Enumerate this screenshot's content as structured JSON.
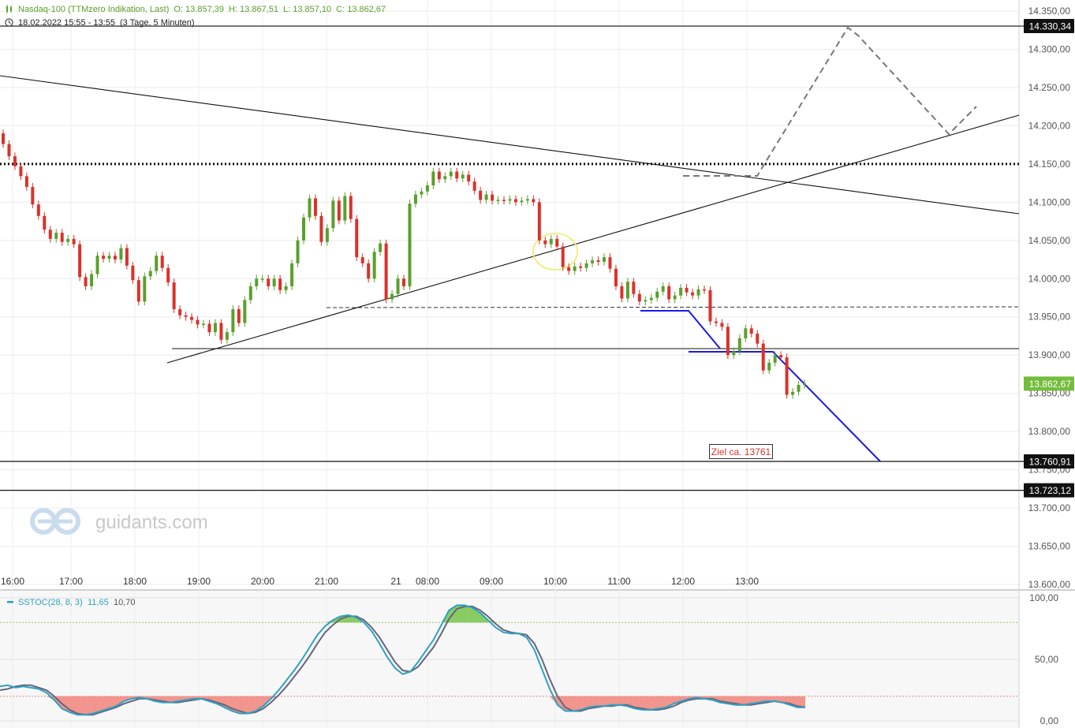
{
  "header": {
    "instrument": "Nasdaq-100 (TTMzero Indikation, Last)",
    "open": "O: 13.857,39",
    "high": "H: 13.867,51",
    "low": "L: 13.857,10",
    "close": "C: 13.862,67",
    "period": "18.02.2022 15:55 - 13:55",
    "interval": "(3 Tage, 5 Minuten)",
    "chart_icon": "candlestick-icon",
    "clock_icon": "clock-icon"
  },
  "watermark": {
    "text": "guidants.com",
    "icon": "guidants-logo-icon"
  },
  "annotation": {
    "target_label": "Ziel ca. 13761"
  },
  "indicator": {
    "label": "SSTOC(28, 8, 3)",
    "value1": "11,65",
    "value2": "10,70"
  },
  "colors": {
    "up": "#5aa02c",
    "down": "#d9322b",
    "indicator_k": "#2ea1c4",
    "indicator_d": "#66667a",
    "overbought_fill": "#7cc653",
    "oversold_fill": "#f08a82",
    "blue_line": "#1a1ae6",
    "badge_last": "#74bd3c"
  },
  "chart_data": [
    {
      "type": "candlestick",
      "title": "Nasdaq-100 (TTMzero Indikation, Last)",
      "x_tick_labels": [
        "16:00",
        "17:00",
        "18:00",
        "19:00",
        "20:00",
        "21:00",
        "21",
        "08:00",
        "09:00",
        "10:00",
        "11:00",
        "12:00",
        "13:00"
      ],
      "y_tick_labels": [
        "14.350,00",
        "14.300,00",
        "14.250,00",
        "14.200,00",
        "14.150,00",
        "14.100,00",
        "14.050,00",
        "14.000,00",
        "13.950,00",
        "13.900,00",
        "13.850,00",
        "13.800,00",
        "13.750,00",
        "13.700,00",
        "13.650,00",
        "13.600,00"
      ],
      "ylim": [
        13595,
        14355
      ],
      "grid": true,
      "candle_close": [
        14176,
        14160,
        14147,
        14134,
        14120,
        14097,
        14082,
        14064,
        14052,
        14060,
        14048,
        14052,
        14045,
        14002,
        13990,
        14006,
        14030,
        14026,
        14030,
        14025,
        14040,
        14017,
        13998,
        13970,
        14003,
        14010,
        14030,
        14014,
        13995,
        13960,
        13952,
        13950,
        13946,
        13940,
        13941,
        13930,
        13942,
        13920,
        13930,
        13960,
        13942,
        13972,
        13990,
        14000,
        14000,
        13990,
        14000,
        13985,
        13990,
        14020,
        14050,
        14080,
        14105,
        14082,
        14048,
        14066,
        14102,
        14076,
        14108,
        14078,
        14028,
        14020,
        14000,
        14035,
        14046,
        13973,
        13980,
        14000,
        13990,
        14098,
        14110,
        14114,
        14122,
        14140,
        14130,
        14134,
        14140,
        14131,
        14136,
        14127,
        14115,
        14103,
        14110,
        14102,
        14103,
        14102,
        14104,
        14100,
        14102,
        14104,
        14100,
        14050,
        14045,
        14052,
        14042,
        14015,
        14010,
        14016,
        14014,
        14020,
        14024,
        14022,
        14028,
        14013,
        13990,
        13974,
        13996,
        13980,
        13970,
        13972,
        13975,
        13983,
        13990,
        13973,
        13978,
        13988,
        13982,
        13978,
        13986,
        13985,
        13944,
        13942,
        13937,
        13900,
        13905,
        13922,
        13935,
        13928,
        13915,
        13880,
        13890,
        13900,
        13897,
        13848,
        13852,
        13861,
        13863
      ],
      "label_value": 13862.67,
      "horizontal_levels": [
        14330.34,
        13760.91,
        13723.12
      ],
      "dotted_level": 14150,
      "dashed_level": 13962,
      "level_labels": [
        "14.330,34",
        "13.760,91",
        "13.723,12"
      ],
      "last_price_label": "13.862,67",
      "annotation": "Ziel ca. 13761"
    },
    {
      "type": "line",
      "title": "SSTOC(28, 8, 3)",
      "y_tick_labels": [
        "100,00",
        "50,00",
        "0,00"
      ],
      "ylim": [
        0,
        100
      ],
      "levels": [
        80,
        20
      ],
      "series": [
        {
          "name": "",
          "values": [
            28,
            29,
            27,
            28,
            27,
            26,
            23,
            17,
            10,
            7,
            5,
            5,
            6,
            8,
            10,
            12,
            16,
            18,
            19,
            18,
            16,
            15,
            15,
            16,
            17,
            18,
            18,
            16,
            14,
            11,
            8,
            6,
            6,
            8,
            12,
            18,
            25,
            33,
            41,
            50,
            60,
            70,
            77,
            82,
            85,
            86,
            84,
            80,
            73,
            63,
            52,
            43,
            38,
            40,
            48,
            57,
            66,
            78,
            90,
            94,
            94,
            92,
            88,
            82,
            76,
            72,
            71,
            71,
            68,
            58,
            42,
            26,
            13,
            8,
            8,
            9,
            11,
            12,
            12,
            13,
            13,
            12,
            10,
            9,
            9,
            10,
            11,
            14,
            16,
            18,
            19,
            18,
            17,
            15,
            14,
            13,
            13,
            14,
            15,
            16,
            16,
            15,
            13,
            11,
            11
          ]
        },
        {
          "name": "",
          "values": [
            25,
            26,
            28,
            29,
            29,
            27,
            25,
            20,
            14,
            9,
            6,
            5,
            5,
            7,
            9,
            11,
            14,
            16,
            18,
            18,
            17,
            16,
            15,
            15,
            16,
            17,
            18,
            17,
            15,
            13,
            10,
            8,
            6,
            7,
            10,
            15,
            21,
            28,
            36,
            44,
            53,
            63,
            72,
            78,
            83,
            85,
            85,
            82,
            76,
            68,
            58,
            48,
            41,
            40,
            44,
            52,
            60,
            71,
            83,
            91,
            93,
            93,
            90,
            85,
            79,
            74,
            72,
            71,
            70,
            63,
            50,
            34,
            20,
            11,
            8,
            8,
            10,
            11,
            12,
            12,
            13,
            13,
            11,
            10,
            9,
            9,
            10,
            12,
            15,
            17,
            18,
            18,
            18,
            16,
            15,
            14,
            13,
            13,
            14,
            15,
            16,
            15,
            14,
            12,
            11
          ]
        }
      ],
      "value_labels": [
        "11,65",
        "10,70"
      ]
    }
  ]
}
